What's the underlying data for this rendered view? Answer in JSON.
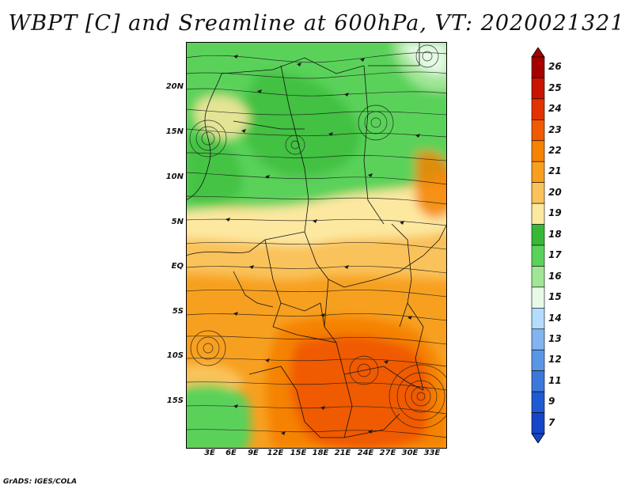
{
  "title": "WBPT [C] and Sreamline at 600hPa, VT: 2020021321",
  "credit": "GrADS: IGES/COLA",
  "lat_labels": [
    "20N",
    "15N",
    "10N",
    "5N",
    "EQ",
    "5S",
    "10S",
    "15S"
  ],
  "lon_labels": [
    "3E",
    "6E",
    "9E",
    "12E",
    "15E",
    "18E",
    "21E",
    "24E",
    "27E",
    "30E",
    "33E"
  ],
  "colorbar": {
    "labels": [
      "26",
      "25",
      "24",
      "23",
      "22",
      "21",
      "20",
      "19",
      "18",
      "17",
      "16",
      "15",
      "14",
      "13",
      "12",
      "11",
      "9",
      "7"
    ],
    "colors": [
      "#a50000",
      "#c81400",
      "#e13200",
      "#f05a00",
      "#f58200",
      "#f7a020",
      "#fac25a",
      "#fde8a0",
      "#37b937",
      "#5ad25a",
      "#a0e696",
      "#e6fae6",
      "#b4dcff",
      "#82b4f0",
      "#5a96e6",
      "#3c78dc",
      "#1e5ad2",
      "#1446c8"
    ]
  },
  "map_colors": {
    "green_dark": "#37b937",
    "green": "#5ad25a",
    "green_light": "#a0e696",
    "yellow": "#fde8a0",
    "orange_light": "#fac25a",
    "orange": "#f7a020",
    "orange_dark": "#f58200",
    "red": "#f05a00",
    "cyan": "#e6fae6"
  }
}
